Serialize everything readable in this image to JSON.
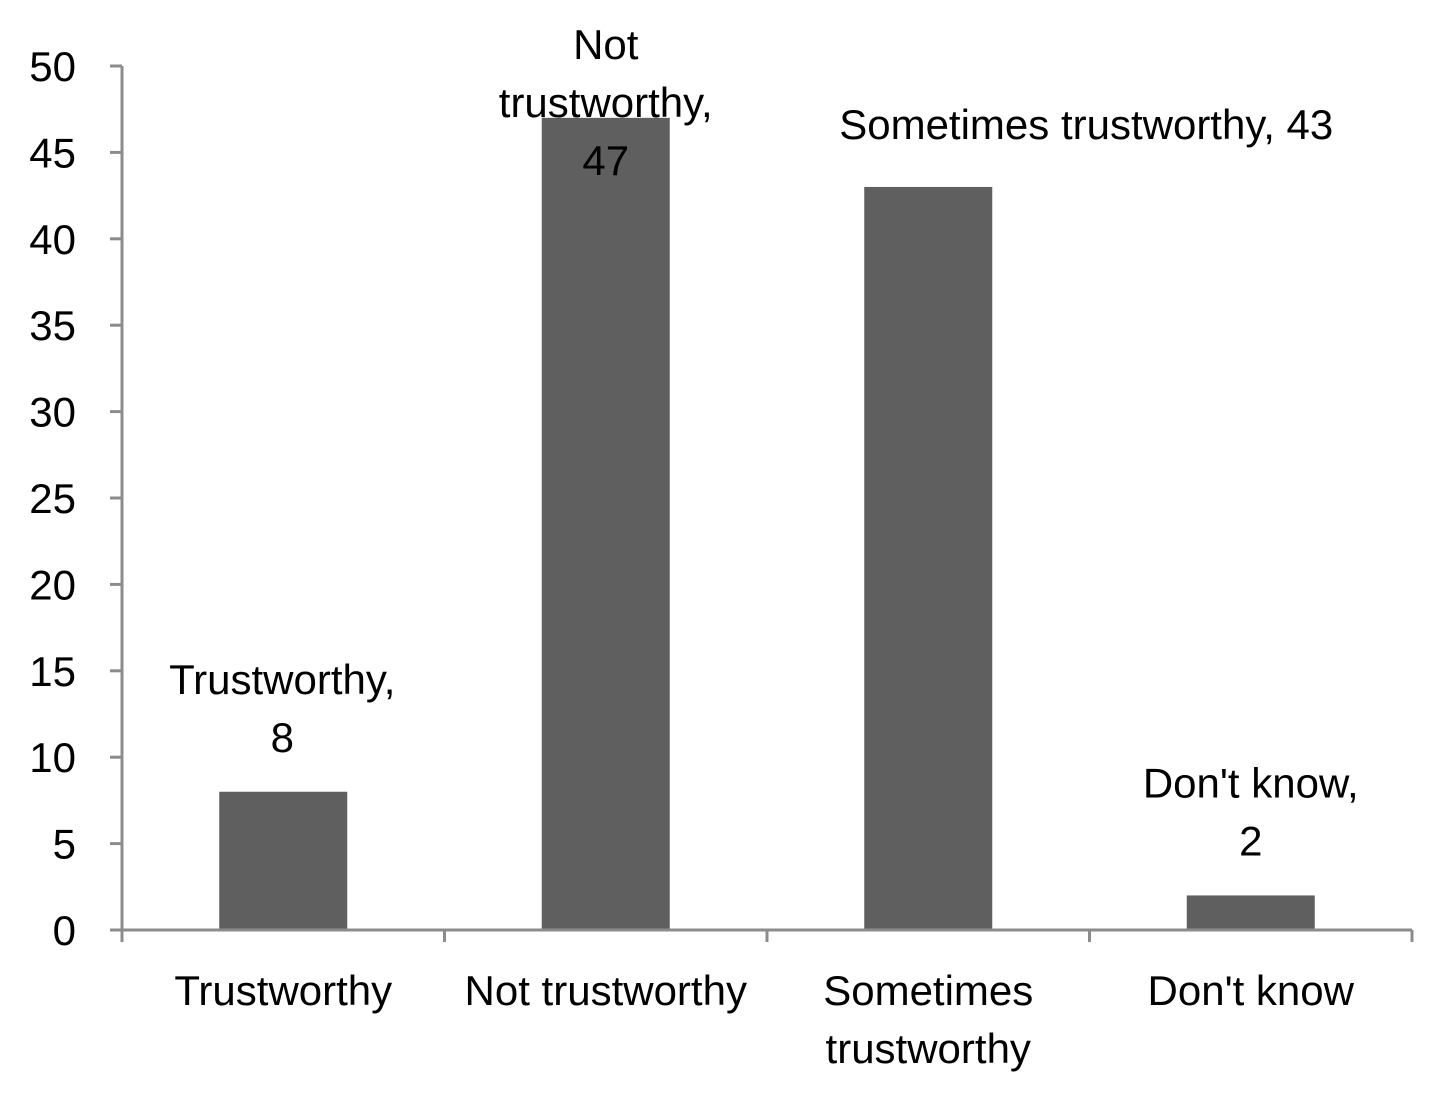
{
  "chart_data": {
    "type": "bar",
    "title": "",
    "xlabel": "",
    "ylabel": "",
    "ylim": [
      0,
      50
    ],
    "yticks": [
      0,
      5,
      10,
      15,
      20,
      25,
      30,
      35,
      40,
      45,
      50
    ],
    "categories": [
      [
        "Trustworthy"
      ],
      [
        "Not trustworthy"
      ],
      [
        "Sometimes",
        "trustworthy"
      ],
      [
        "Don't know"
      ]
    ],
    "values": [
      8,
      47,
      43,
      2
    ],
    "data_labels": [
      [
        "Trustworthy,",
        "8"
      ],
      [
        "Not",
        "trustworthy,",
        "47"
      ],
      [
        "Sometimes trustworthy, 43"
      ],
      [
        "Don't know,",
        "2"
      ]
    ],
    "grid": false,
    "legend": "none",
    "bar_color": "#5f5f5f",
    "axis_color": "#8c8c8c"
  }
}
